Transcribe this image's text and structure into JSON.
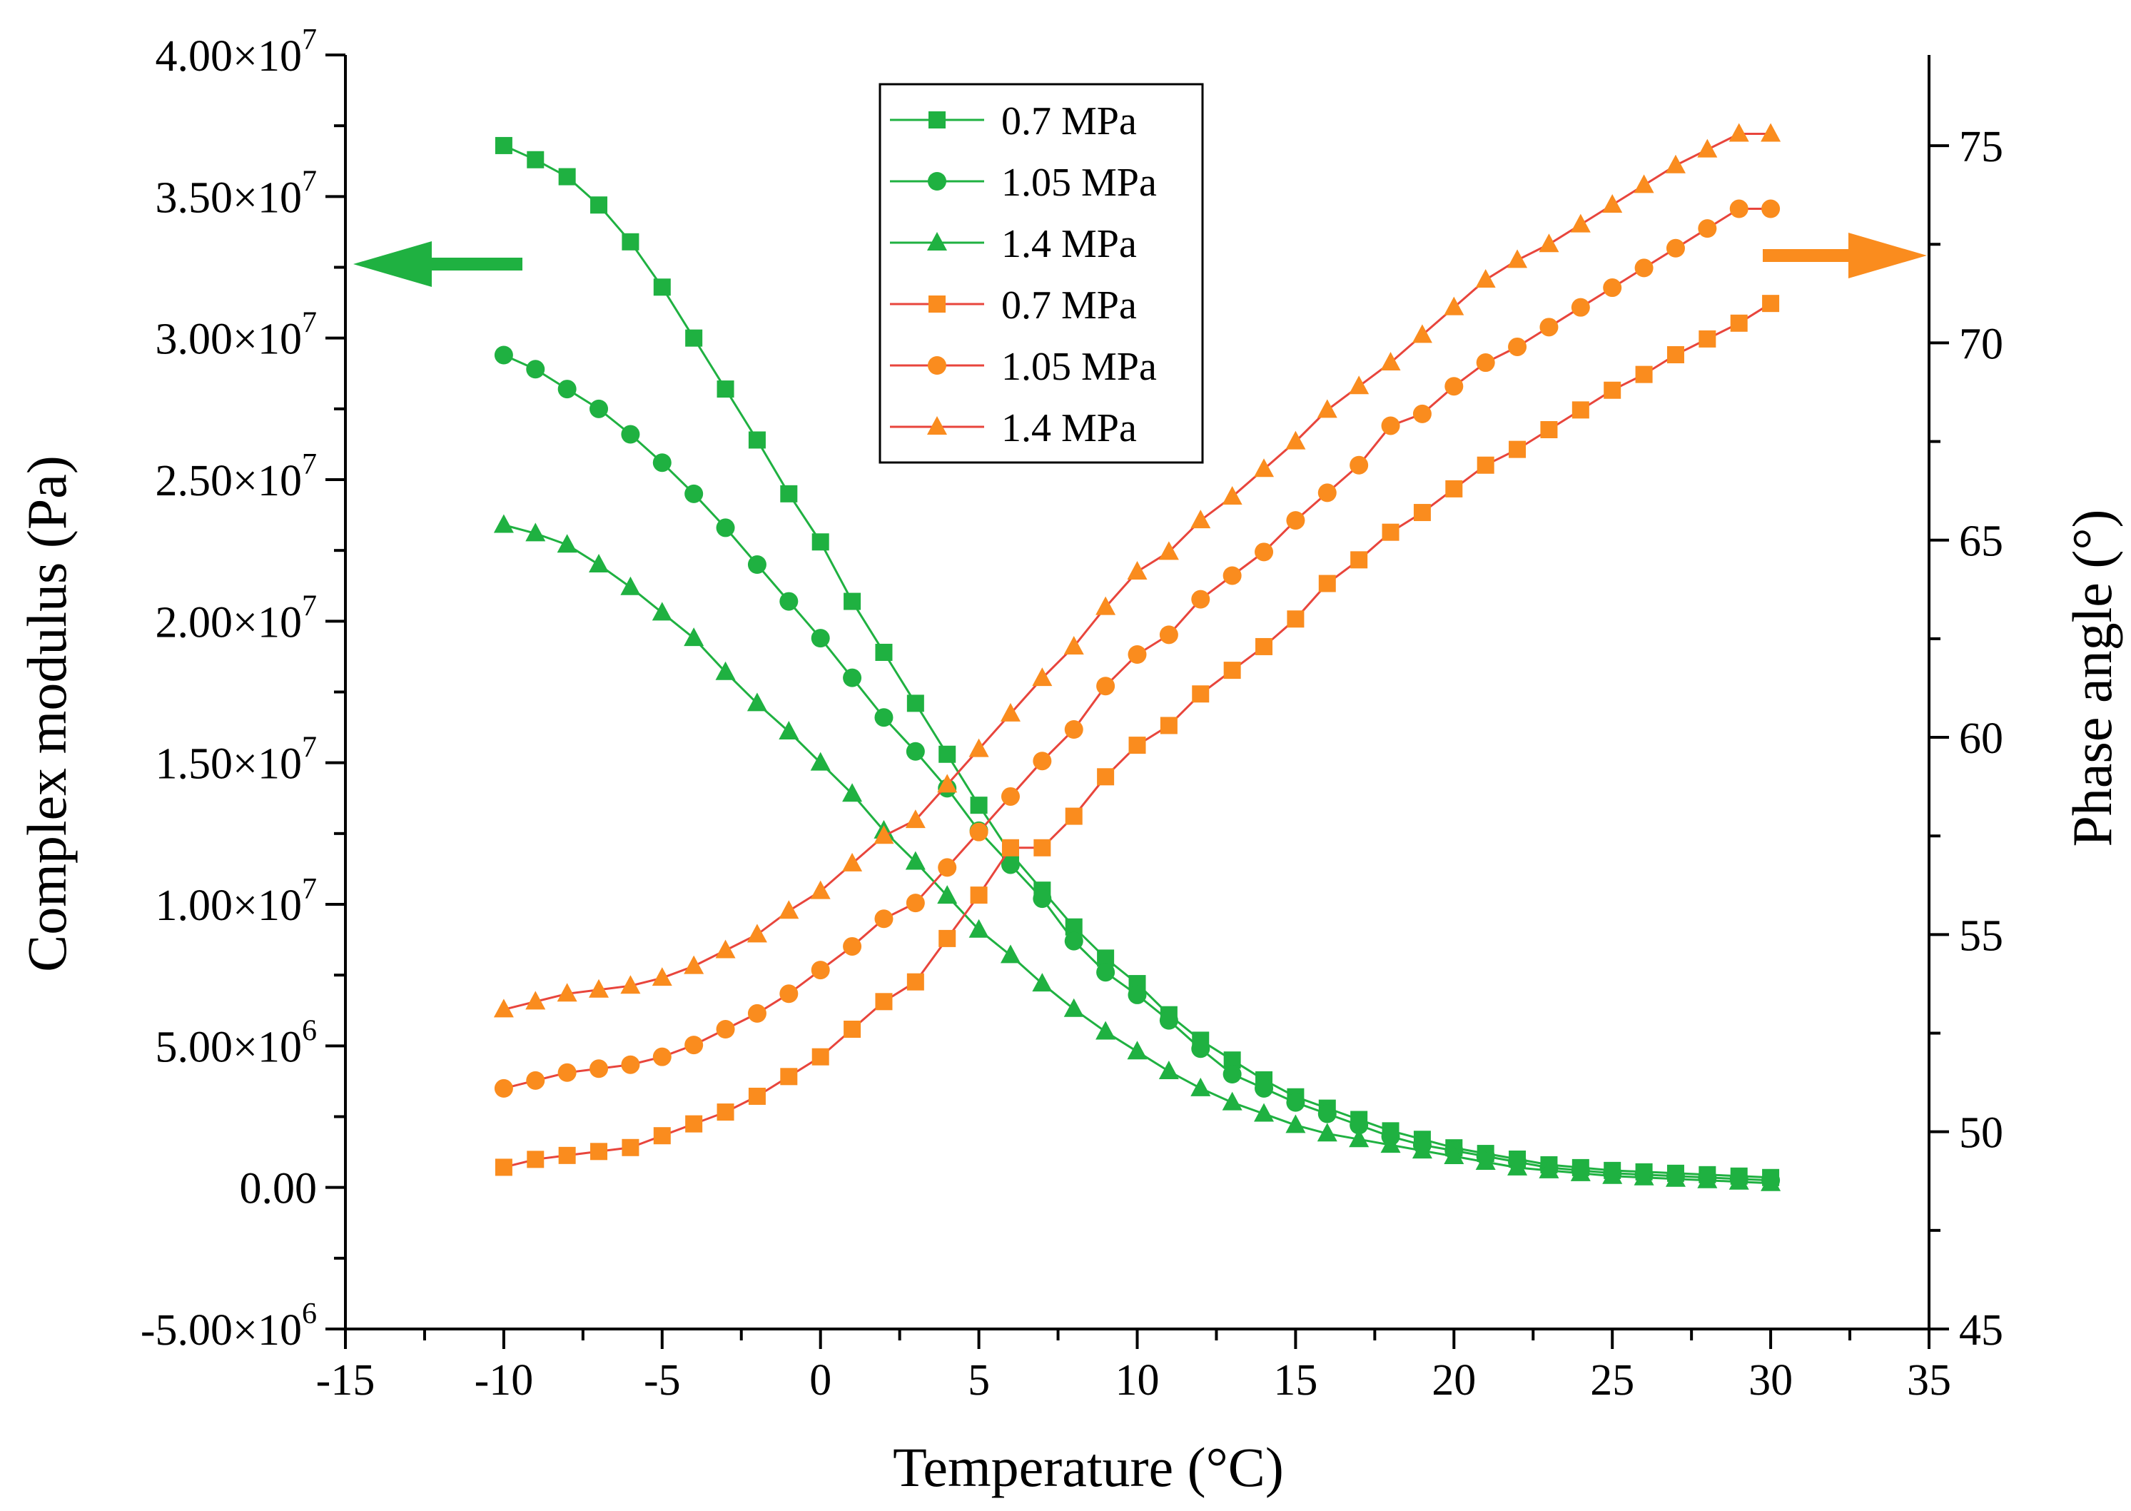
{
  "chart_data": {
    "type": "line",
    "title": "",
    "xlabel": "Temperature (°C)",
    "ylabel": "Complex modulus (Pa)",
    "y2label": "Phase angle (°)",
    "xlim": [
      -15,
      35
    ],
    "ylim": [
      -5000000,
      40000000
    ],
    "y2lim": [
      45,
      77.3
    ],
    "x_ticks": [
      -15,
      -10,
      -5,
      0,
      5,
      10,
      15,
      20,
      25,
      30,
      35
    ],
    "x_tick_labels": [
      "-15",
      "-10",
      "-5",
      "0",
      "5",
      "10",
      "15",
      "20",
      "25",
      "30",
      "35"
    ],
    "y_ticks": [
      -5000000,
      0,
      5000000,
      10000000,
      15000000,
      20000000,
      25000000,
      30000000,
      35000000,
      40000000
    ],
    "y_tick_mantissas": [
      "-5.00×10",
      "0.00",
      "5.00×10",
      "1.00×10",
      "1.50×10",
      "2.00×10",
      "2.50×10",
      "3.00×10",
      "3.50×10",
      "4.00×10"
    ],
    "y_tick_exponents": [
      "6",
      "",
      "6",
      "7",
      "7",
      "7",
      "7",
      "7",
      "7",
      "7"
    ],
    "y2_ticks": [
      45,
      50,
      55,
      60,
      65,
      70,
      75
    ],
    "y2_tick_labels": [
      "45",
      "50",
      "55",
      "60",
      "65",
      "70",
      "75"
    ],
    "grid": false,
    "legend_position": "top-center",
    "colors": {
      "green": "#1fb141",
      "orange": "#fa8c1e",
      "red_line": "#e8453c",
      "axis": "#000000"
    },
    "x": [
      -10,
      -9,
      -8,
      -7,
      -6,
      -5,
      -4,
      -3,
      -2,
      -1,
      0,
      1,
      2,
      3,
      4,
      5,
      6,
      7,
      8,
      9,
      10,
      11,
      12,
      13,
      14,
      15,
      16,
      17,
      18,
      19,
      20,
      21,
      22,
      23,
      24,
      25,
      26,
      27,
      28,
      29,
      30
    ],
    "series": [
      {
        "name": "0.7 MPa",
        "axis": "left",
        "marker": "square",
        "color": "#1fb141",
        "line_color": "#1fb141",
        "values": [
          36800000,
          36300000,
          35700000,
          34700000,
          33400000,
          31800000,
          30000000,
          28200000,
          26400000,
          24500000,
          22800000,
          20700000,
          18900000,
          17100000,
          15300000,
          13500000,
          11800000,
          10500000,
          9200000,
          8100000,
          7200000,
          6100000,
          5200000,
          4500000,
          3800000,
          3200000,
          2800000,
          2400000,
          2000000,
          1700000,
          1400000,
          1200000,
          1000000,
          800000,
          700000,
          600000,
          550000,
          500000,
          450000,
          400000,
          350000
        ]
      },
      {
        "name": "1.05 MPa",
        "axis": "left",
        "marker": "circle",
        "color": "#1fb141",
        "line_color": "#1fb141",
        "values": [
          29400000,
          28900000,
          28200000,
          27500000,
          26600000,
          25600000,
          24500000,
          23300000,
          22000000,
          20700000,
          19400000,
          18000000,
          16600000,
          15400000,
          14100000,
          12600000,
          11400000,
          10200000,
          8700000,
          7600000,
          6800000,
          5900000,
          4900000,
          4000000,
          3500000,
          3000000,
          2600000,
          2200000,
          1800000,
          1500000,
          1300000,
          1100000,
          900000,
          700000,
          600000,
          500000,
          450000,
          400000,
          350000,
          300000,
          250000
        ]
      },
      {
        "name": "1.4 MPa",
        "axis": "left",
        "marker": "triangle",
        "color": "#1fb141",
        "line_color": "#1fb141",
        "values": [
          23400000,
          23100000,
          22700000,
          22000000,
          21200000,
          20300000,
          19400000,
          18200000,
          17100000,
          16100000,
          15000000,
          13900000,
          12600000,
          11500000,
          10300000,
          9100000,
          8200000,
          7200000,
          6300000,
          5500000,
          4800000,
          4100000,
          3500000,
          3000000,
          2600000,
          2200000,
          1900000,
          1700000,
          1500000,
          1300000,
          1100000,
          900000,
          700000,
          600000,
          500000,
          400000,
          350000,
          300000,
          250000,
          200000,
          150000
        ]
      },
      {
        "name": "0.7 MPa",
        "axis": "right",
        "marker": "square",
        "color": "#fa8c1e",
        "line_color": "#e8453c",
        "values": [
          49.1,
          49.3,
          49.4,
          49.5,
          49.6,
          49.9,
          50.2,
          50.5,
          50.9,
          51.4,
          51.9,
          52.6,
          53.3,
          53.8,
          54.9,
          56.0,
          57.2,
          57.2,
          58.0,
          59.0,
          59.8,
          60.3,
          61.1,
          61.7,
          62.3,
          63.0,
          63.9,
          64.5,
          65.2,
          65.7,
          66.3,
          66.9,
          67.3,
          67.8,
          68.3,
          68.8,
          69.2,
          69.7,
          70.1,
          70.5,
          71.0
        ]
      },
      {
        "name": "1.05 MPa",
        "axis": "right",
        "marker": "circle",
        "color": "#fa8c1e",
        "line_color": "#e8453c",
        "values": [
          51.1,
          51.3,
          51.5,
          51.6,
          51.7,
          51.9,
          52.2,
          52.6,
          53.0,
          53.5,
          54.1,
          54.7,
          55.4,
          55.8,
          56.7,
          57.6,
          58.5,
          59.4,
          60.2,
          61.3,
          62.1,
          62.6,
          63.5,
          64.1,
          64.7,
          65.5,
          66.2,
          66.9,
          67.9,
          68.2,
          68.9,
          69.5,
          69.9,
          70.4,
          70.9,
          71.4,
          71.9,
          72.4,
          72.9,
          73.4,
          73.4
        ]
      },
      {
        "name": "1.4 MPa",
        "axis": "right",
        "marker": "triangle",
        "color": "#fa8c1e",
        "line_color": "#e8453c",
        "values": [
          53.1,
          53.3,
          53.5,
          53.6,
          53.7,
          53.9,
          54.2,
          54.6,
          55.0,
          55.6,
          56.1,
          56.8,
          57.5,
          57.9,
          58.8,
          59.7,
          60.6,
          61.5,
          62.3,
          63.3,
          64.2,
          64.7,
          65.5,
          66.1,
          66.8,
          67.5,
          68.3,
          68.9,
          69.5,
          70.2,
          70.9,
          71.6,
          72.1,
          72.5,
          73.0,
          73.5,
          74.0,
          74.5,
          74.9,
          75.3,
          75.3
        ]
      }
    ]
  }
}
